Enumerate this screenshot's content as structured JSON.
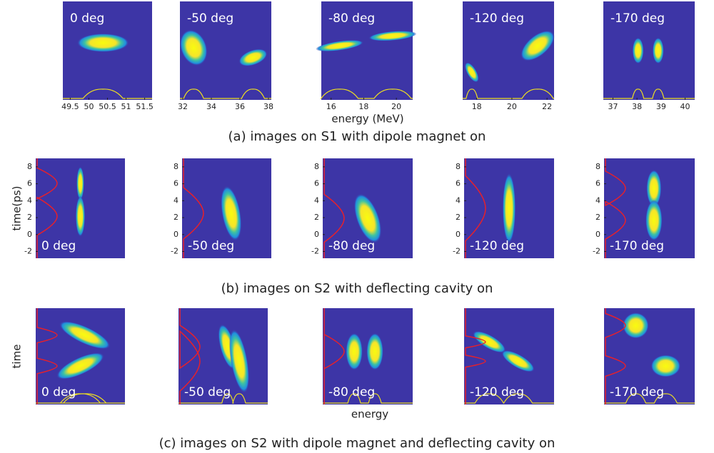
{
  "rows": [
    {
      "caption": "(a) images on S1 with dipole magnet on",
      "x_label": "energy (MeV)",
      "panels": [
        {
          "label": "0 deg",
          "xlim": [
            49.3,
            51.7
          ],
          "xticks": [
            49.5,
            50,
            50.5,
            51,
            51.5
          ]
        },
        {
          "label": "-50 deg",
          "xlim": [
            31.8,
            38.2
          ],
          "xticks": [
            32,
            34,
            36,
            38
          ]
        },
        {
          "label": "-80 deg",
          "xlim": [
            15.4,
            21
          ],
          "xticks": [
            16,
            18,
            20
          ]
        },
        {
          "label": "-120 deg",
          "xlim": [
            17.2,
            22.4
          ],
          "xticks": [
            18,
            20,
            22
          ]
        },
        {
          "label": "-170 deg",
          "xlim": [
            36.6,
            40.4
          ],
          "xticks": [
            37,
            38,
            39,
            40
          ]
        }
      ]
    },
    {
      "caption": "(b) images on S2 with deflecting cavity on",
      "y_label": "time(ps)",
      "ylim": [
        -2.8,
        9
      ],
      "yticks": [
        -2,
        0,
        2,
        4,
        6,
        8
      ],
      "panels": [
        {
          "label": "0 deg"
        },
        {
          "label": "-50 deg"
        },
        {
          "label": "-80 deg"
        },
        {
          "label": "-120 deg"
        },
        {
          "label": "-170 deg"
        }
      ]
    },
    {
      "caption": "(c) images on S2 with dipole magnet and deflecting cavity on",
      "x_label": "energy",
      "y_label": "time",
      "panels": [
        {
          "label": "0 deg"
        },
        {
          "label": "-50 deg"
        },
        {
          "label": "-80 deg"
        },
        {
          "label": "-120 deg"
        },
        {
          "label": "-170 deg"
        }
      ]
    }
  ]
}
